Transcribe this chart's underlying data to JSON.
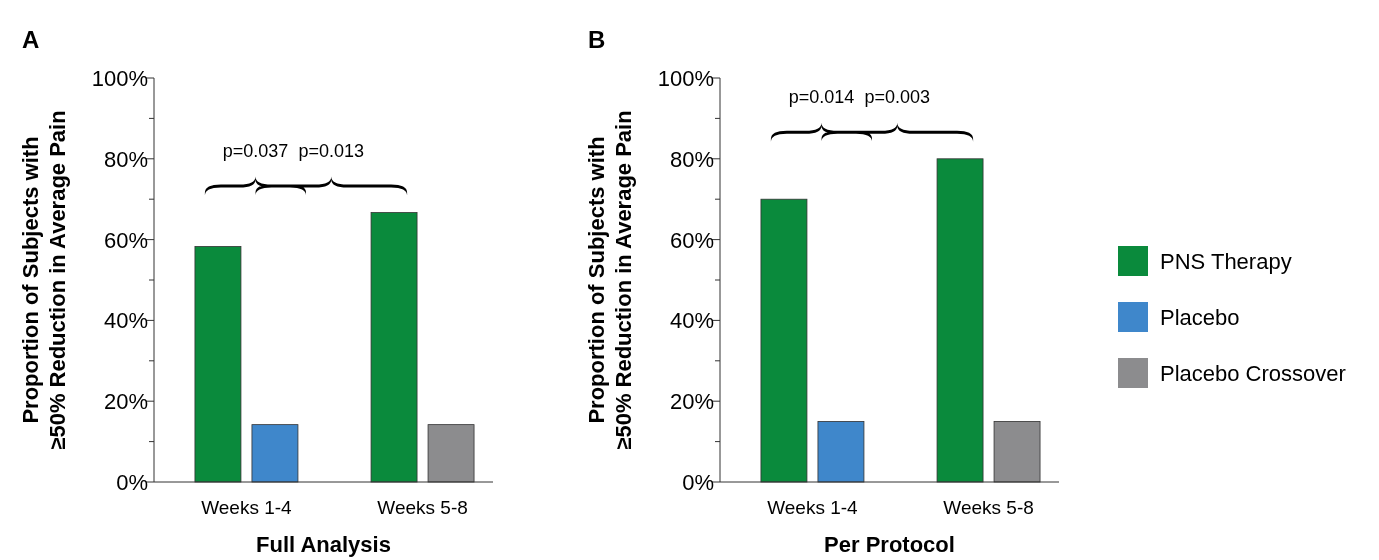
{
  "chart_data": [
    {
      "type": "bar",
      "title": "A",
      "xlabel": "Full Analysis",
      "ylabel": "Proportion of Subjects with ≥50% Reduction in Average Pain",
      "categories": [
        "Weeks 1-4",
        "Weeks 5-8"
      ],
      "series": [
        {
          "color": "#0a8a3c",
          "values": [
            58.3,
            66.7
          ]
        },
        {
          "color": "#3f87cb",
          "values": [
            14.2,
            null
          ]
        },
        {
          "color": "#8c8c8e",
          "values": [
            null,
            14.2
          ]
        }
      ],
      "ylim": [
        0,
        100
      ],
      "yticks": [
        {
          "value": 0,
          "label": "0%"
        },
        {
          "value": 10,
          "label": null
        },
        {
          "value": 20,
          "label": "20%"
        },
        {
          "value": 30,
          "label": null
        },
        {
          "value": 40,
          "label": "40%"
        },
        {
          "value": 50,
          "label": null
        },
        {
          "value": 60,
          "label": "60%"
        },
        {
          "value": 70,
          "label": null
        },
        {
          "value": 80,
          "label": "80%"
        },
        {
          "value": 90,
          "label": null
        },
        {
          "value": 100,
          "label": "100%"
        }
      ],
      "annotations": [
        "p=0.037",
        "p=0.013"
      ],
      "legend": false
    },
    {
      "type": "bar",
      "title": "B",
      "xlabel": "Per Protocol",
      "ylabel": "Proportion of Subjects with ≥50% Reduction in Average Pain",
      "categories": [
        "Weeks 1-4",
        "Weeks 5-8"
      ],
      "series": [
        {
          "name": "PNS Therapy",
          "color": "#0a8a3c",
          "values": [
            70,
            80
          ]
        },
        {
          "name": "Placebo",
          "color": "#3f87cb",
          "values": [
            15,
            null
          ]
        },
        {
          "name": "Placebo Crossover",
          "color": "#8c8c8e",
          "values": [
            null,
            15
          ]
        }
      ],
      "ylim": [
        0,
        100
      ],
      "yticks": [
        {
          "value": 0,
          "label": "0%"
        },
        {
          "value": 10,
          "label": null
        },
        {
          "value": 20,
          "label": "20%"
        },
        {
          "value": 30,
          "label": null
        },
        {
          "value": 40,
          "label": "40%"
        },
        {
          "value": 50,
          "label": null
        },
        {
          "value": 60,
          "label": "60%"
        },
        {
          "value": 70,
          "label": null
        },
        {
          "value": 80,
          "label": "80%"
        },
        {
          "value": 90,
          "label": null
        },
        {
          "value": 100,
          "label": "100%"
        }
      ],
      "annotations": [
        "p=0.014",
        "p=0.003"
      ],
      "legend": "right"
    }
  ]
}
